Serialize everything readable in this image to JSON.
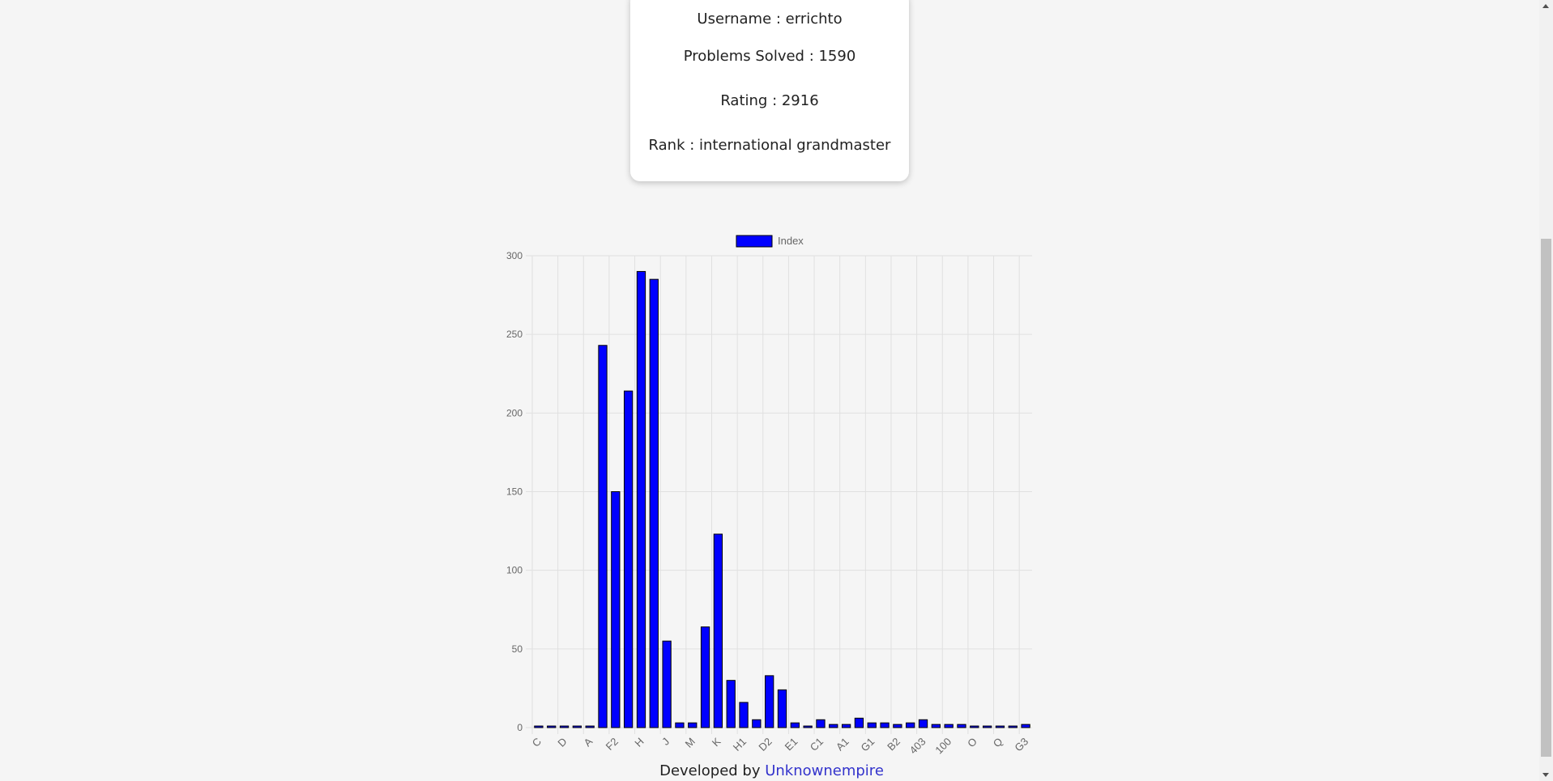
{
  "profile": {
    "username": "Username : errichto",
    "problems_solved": "Problems Solved : 1590",
    "rating": "Rating : 2916",
    "rank": "Rank : international grandmaster"
  },
  "footer": {
    "prefix": "Developed by ",
    "link_text": "Unknownempire"
  },
  "colors": {
    "bar_fill": "#0000ff",
    "bar_border": "#000000",
    "grid": "#e0e0e0",
    "link": "#3333cc"
  },
  "chart_data": {
    "type": "bar",
    "legend": {
      "label": "Index",
      "position": "top"
    },
    "ylim": [
      0,
      300
    ],
    "yticks": [
      0,
      50,
      100,
      150,
      200,
      250,
      300
    ],
    "grid": true,
    "categories": [
      "C",
      "",
      "D",
      "",
      "A",
      "",
      "F2",
      "",
      "H",
      "",
      "J",
      "",
      "M",
      "",
      "K",
      "",
      "H1",
      "",
      "D2",
      "",
      "E1",
      "",
      "C1",
      "",
      "A1",
      "",
      "G1",
      "",
      "B2",
      "",
      "403",
      "",
      "100",
      "",
      "O",
      "",
      "Q",
      "",
      "G3"
    ],
    "tick_labels": [
      "C",
      "D",
      "A",
      "F2",
      "H",
      "J",
      "M",
      "K",
      "H1",
      "D2",
      "E1",
      "C1",
      "A1",
      "G1",
      "B2",
      "403",
      "100",
      "O",
      "Q",
      "G3"
    ],
    "values": [
      1,
      1,
      1,
      1,
      1,
      243,
      150,
      214,
      290,
      285,
      55,
      3,
      3,
      64,
      123,
      30,
      16,
      5,
      33,
      24,
      3,
      1,
      5,
      2,
      2,
      6,
      3,
      3,
      2,
      3,
      5,
      2,
      2,
      2,
      1,
      1,
      1,
      1,
      2
    ]
  }
}
